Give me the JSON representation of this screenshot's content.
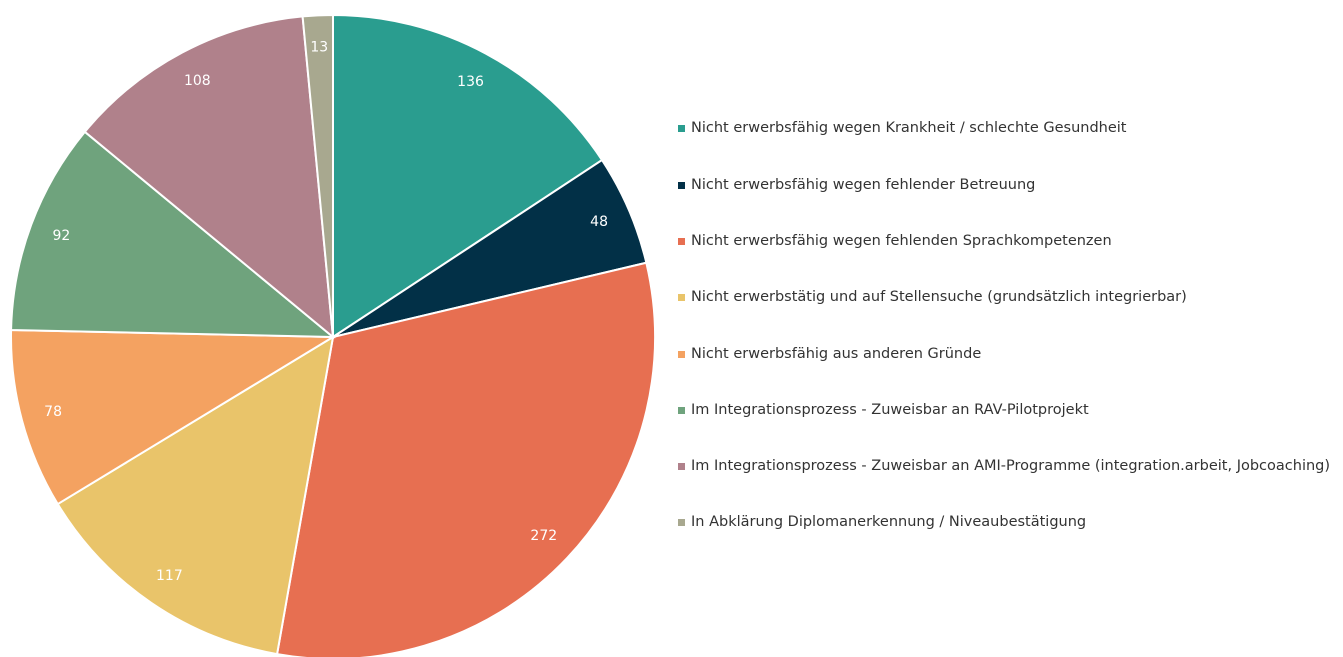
{
  "chart_data": {
    "type": "pie",
    "categories": [
      "Nicht erwerbsfähig wegen Krankheit / schlechte Gesundheit",
      "Nicht erwerbsfähig wegen fehlender Betreuung",
      "Nicht erwerbsfähig wegen fehlenden Sprachkompetenzen",
      "Nicht erwerbstätig und auf Stellensuche (grundsätzlich integrierbar)",
      "Nicht erwerbsfähig aus anderen Gründe",
      "Im Integrationsprozess - Zuweisbar an RAV-Pilotprojekt",
      "Im Integrationsprozess - Zuweisbar an AMI-Programme (integration.arbeit, Jobcoaching)",
      "In Abklärung Diplomanerkennung / Niveaubestätigung"
    ],
    "values": [
      136,
      48,
      272,
      117,
      78,
      92,
      108,
      13
    ],
    "colors": [
      "#2a9d8f",
      "#023047",
      "#e76f51",
      "#e9c46a",
      "#f4a261",
      "#6fa37d",
      "#b0818b",
      "#a8a88f"
    ],
    "legend": "right"
  }
}
